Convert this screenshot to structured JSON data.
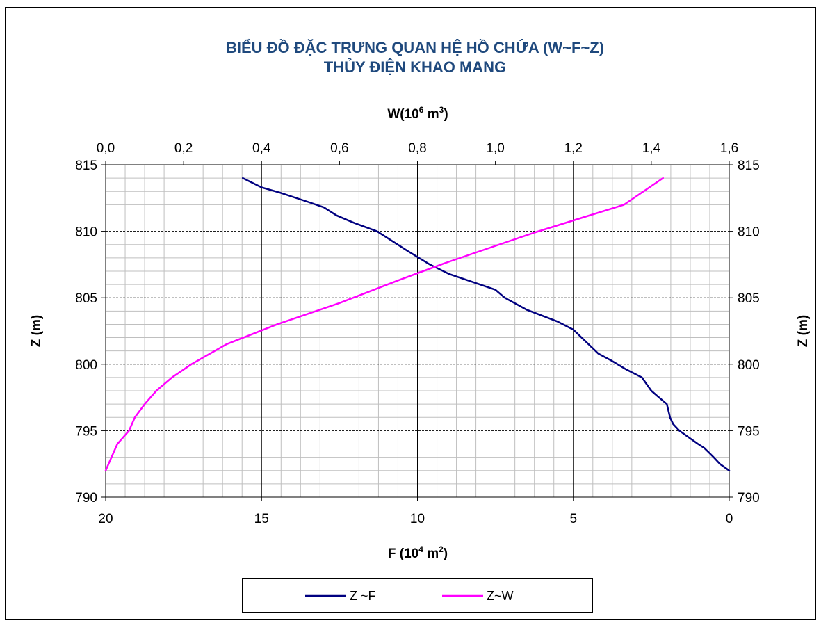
{
  "chart_data": {
    "type": "line",
    "title_lines": [
      "BIỂU ĐỒ ĐẶC TRƯNG QUAN HỆ HỒ CHỨA (W~F~Z)",
      "THỦY ĐIỆN KHAO MANG"
    ],
    "x_top_label": {
      "base": "W(10",
      "exp": "6",
      "unit": " m",
      "unit_exp": "3",
      "close": ")"
    },
    "x_bottom_label": {
      "base": "F  (10",
      "exp": "4",
      "unit": " m",
      "unit_exp": "2",
      "close": ")"
    },
    "y_left_label": "Z (m)",
    "y_right_label": "Z (m)",
    "x_top_range": [
      0,
      1.6
    ],
    "x_top_ticks": [
      "0,0",
      "0,2",
      "0,4",
      "0,6",
      "0,8",
      "1,0",
      "1,2",
      "1,4",
      "1,6"
    ],
    "x_bottom_range": [
      20,
      0
    ],
    "x_bottom_ticks": [
      "20",
      "15",
      "10",
      "5",
      "0"
    ],
    "y_range": [
      790,
      815
    ],
    "y_ticks": [
      "790",
      "795",
      "800",
      "805",
      "810",
      "815"
    ],
    "grid": true,
    "legend_position": "bottom",
    "series": [
      {
        "name": "Z ~F",
        "axis": "bottom",
        "color": "#000080",
        "points": [
          [
            0,
            792
          ],
          [
            0.3,
            792.5
          ],
          [
            0.5,
            793
          ],
          [
            0.8,
            793.7
          ],
          [
            1.0,
            794
          ],
          [
            1.3,
            794.5
          ],
          [
            1.6,
            795
          ],
          [
            1.8,
            795.5
          ],
          [
            1.9,
            796
          ],
          [
            2.0,
            797
          ],
          [
            2.3,
            797.6
          ],
          [
            2.5,
            798
          ],
          [
            2.8,
            799
          ],
          [
            3.3,
            799.6
          ],
          [
            3.8,
            800.3
          ],
          [
            4.2,
            800.8
          ],
          [
            4.6,
            801.7
          ],
          [
            5.0,
            802.6
          ],
          [
            5.5,
            803.2
          ],
          [
            6.5,
            804.1
          ],
          [
            7.2,
            805
          ],
          [
            7.5,
            805.6
          ],
          [
            8.0,
            806
          ],
          [
            9.0,
            806.8
          ],
          [
            9.6,
            807.5
          ],
          [
            10.3,
            808.5
          ],
          [
            11.3,
            810
          ],
          [
            12.0,
            810.6
          ],
          [
            12.6,
            811.2
          ],
          [
            13.0,
            811.8
          ],
          [
            13.5,
            812.2
          ],
          [
            14.4,
            812.9
          ],
          [
            15.0,
            813.3
          ],
          [
            15.6,
            814
          ]
        ]
      },
      {
        "name": "Z~W",
        "axis": "top",
        "color": "#ff00ff",
        "points": [
          [
            0,
            792
          ],
          [
            0.03,
            794
          ],
          [
            0.06,
            795
          ],
          [
            0.075,
            796
          ],
          [
            0.1,
            797
          ],
          [
            0.13,
            798
          ],
          [
            0.17,
            799
          ],
          [
            0.22,
            800
          ],
          [
            0.31,
            801.5
          ],
          [
            0.44,
            803
          ],
          [
            0.6,
            804.6
          ],
          [
            0.75,
            806.3
          ],
          [
            0.87,
            807.6
          ],
          [
            0.99,
            808.8
          ],
          [
            1.1,
            809.9
          ],
          [
            1.22,
            811
          ],
          [
            1.33,
            812
          ],
          [
            1.43,
            814
          ]
        ]
      }
    ]
  }
}
